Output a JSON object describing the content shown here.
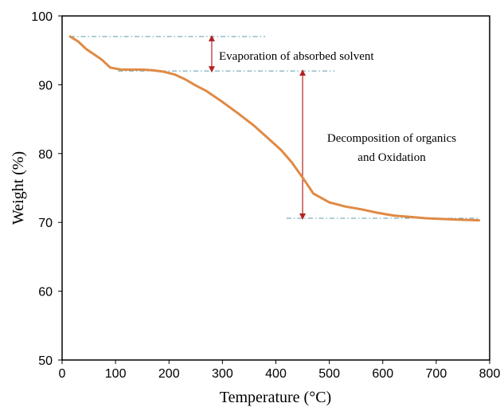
{
  "chart_data": {
    "type": "line",
    "title": "",
    "xlabel": "Temperature (°C)",
    "ylabel": "Weight (%)",
    "xlim": [
      0,
      800
    ],
    "ylim": [
      50,
      100
    ],
    "xticks": [
      0,
      100,
      200,
      300,
      400,
      500,
      600,
      700,
      800
    ],
    "yticks": [
      50,
      60,
      70,
      80,
      90,
      100
    ],
    "grid": false,
    "legend": "none",
    "series": [
      {
        "color": "#e08a45",
        "x": [
          15,
          30,
          45,
          60,
          75,
          90,
          110,
          130,
          150,
          170,
          190,
          210,
          230,
          250,
          270,
          300,
          330,
          360,
          390,
          410,
          430,
          450,
          470,
          500,
          530,
          560,
          590,
          620,
          650,
          680,
          710,
          740,
          780
        ],
        "y": [
          97.0,
          96.3,
          95.2,
          94.4,
          93.6,
          92.5,
          92.2,
          92.2,
          92.2,
          92.1,
          91.9,
          91.5,
          90.8,
          89.9,
          89.1,
          87.5,
          85.8,
          84.0,
          81.9,
          80.5,
          78.7,
          76.5,
          74.2,
          72.9,
          72.3,
          71.9,
          71.4,
          71.0,
          70.8,
          70.6,
          70.5,
          70.4,
          70.3
        ]
      }
    ],
    "reference_lines": [
      {
        "y": 97.0,
        "x_from": 15,
        "x_to": 380,
        "color": "#5b9aad"
      },
      {
        "y": 92.0,
        "x_from": 105,
        "x_to": 510,
        "color": "#5b9aad"
      },
      {
        "y": 70.6,
        "x_from": 420,
        "x_to": 780,
        "color": "#5b9aad"
      }
    ],
    "annotations": [
      {
        "text": "Evaporation of absorbed solvent",
        "arrow_x": 280,
        "y_from": 97.0,
        "y_to": 92.0
      },
      {
        "text_lines": [
          "Decomposition of organics",
          "and Oxidation"
        ],
        "arrow_x": 450,
        "y_from": 92.0,
        "y_to": 70.6
      }
    ],
    "arrow_color": "#b22222"
  }
}
